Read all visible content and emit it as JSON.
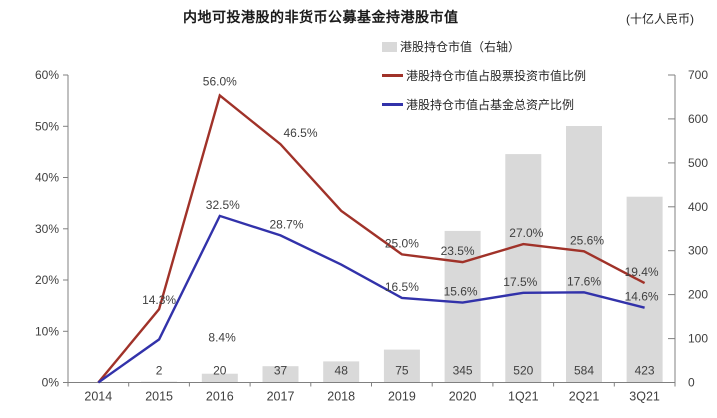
{
  "title": "内地可投港股的非货币公募基金持港股市值",
  "unit_label": "(十亿人民币)",
  "colors": {
    "bar": "#D9D9D9",
    "red_line": "#A03229",
    "blue_line": "#3232AA",
    "axis": "#808080",
    "label_text": "#404040"
  },
  "legend": [
    {
      "label": "港股持仓市值（右轴）",
      "type": "bar",
      "color": "#D9D9D9"
    },
    {
      "label": "港股持仓市值占股票投资市值比例",
      "type": "line",
      "color": "#A03229"
    },
    {
      "label": "港股持仓市值占基金总资产比例",
      "type": "line",
      "color": "#3232AA"
    }
  ],
  "chart_data": {
    "type": "combo-bar-line",
    "title": "内地可投港股的非货币公募基金持港股市值",
    "right_axis_unit": "十亿人民币",
    "categories": [
      "2014",
      "2015",
      "2016",
      "2017",
      "2018",
      "2019",
      "2020",
      "1Q21",
      "2Q21",
      "3Q21"
    ],
    "series": [
      {
        "name": "港股持仓市值（右轴）",
        "type": "bar",
        "axis": "right",
        "color": "#D9D9D9",
        "values": [
          0,
          2,
          20,
          37,
          48,
          75,
          345,
          520,
          584,
          423
        ],
        "labels": [
          "",
          "2",
          "20",
          "37",
          "48",
          "75",
          "345",
          "520",
          "584",
          "423"
        ]
      },
      {
        "name": "港股持仓市值占股票投资市值比例",
        "type": "line",
        "axis": "left",
        "color": "#A03229",
        "values": [
          0,
          14.3,
          56.0,
          46.5,
          33.5,
          25.0,
          23.5,
          27.0,
          25.6,
          19.4
        ],
        "labels": [
          "",
          "14.3%",
          "56.0%",
          "46.5%",
          "",
          "25.0%",
          "23.5%",
          "27.0%",
          "25.6%",
          "19.4%"
        ],
        "label_offsets": [
          [
            0,
            0
          ],
          [
            0,
            2
          ],
          [
            0,
            -3
          ],
          [
            20,
            0
          ],
          [
            0,
            0
          ],
          [
            0,
            0
          ],
          [
            -5,
            0
          ],
          [
            3,
            0
          ],
          [
            3,
            0
          ],
          [
            -3,
            0
          ]
        ]
      },
      {
        "name": "港股持仓市值占基金总资产比例",
        "type": "line",
        "axis": "left",
        "color": "#3232AA",
        "values": [
          0,
          8.4,
          32.5,
          28.7,
          23.0,
          16.5,
          15.6,
          17.5,
          17.6,
          14.6
        ],
        "labels": [
          "",
          "8.4%",
          "32.5%",
          "28.7%",
          "",
          "16.5%",
          "15.6%",
          "17.5%",
          "17.6%",
          "14.6%"
        ],
        "label_offsets": [
          [
            0,
            0
          ],
          [
            63,
            9
          ],
          [
            3,
            0
          ],
          [
            6,
            0
          ],
          [
            0,
            0
          ],
          [
            0,
            0
          ],
          [
            -2,
            0
          ],
          [
            -3,
            0
          ],
          [
            0,
            0
          ],
          [
            -3,
            0
          ]
        ]
      }
    ],
    "left_axis": {
      "min": 0,
      "max": 60,
      "step": 10,
      "format": "percent",
      "ticks": [
        "0%",
        "10%",
        "20%",
        "30%",
        "40%",
        "50%",
        "60%"
      ]
    },
    "right_axis": {
      "min": 0,
      "max": 700,
      "step": 100,
      "ticks": [
        "0",
        "100",
        "200",
        "300",
        "400",
        "500",
        "600",
        "700"
      ]
    },
    "grid": false,
    "legend_position": "top-center"
  }
}
